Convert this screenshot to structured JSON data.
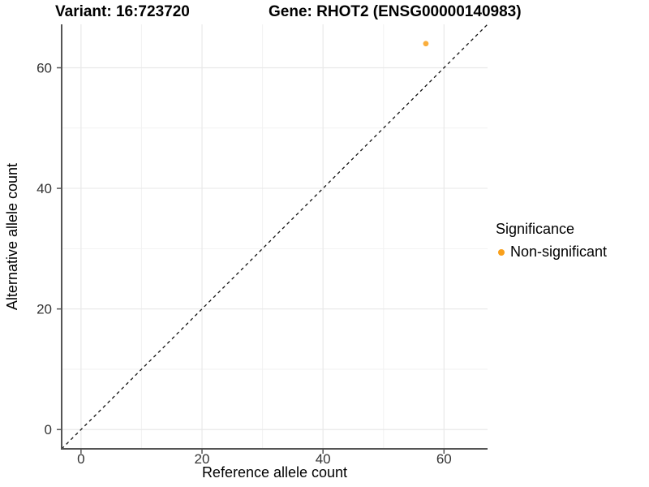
{
  "header": {
    "variant_title": "Variant: 16:723720",
    "gene_title": "Gene: RHOT2 (ENSG00000140983)"
  },
  "legend": {
    "title": "Significance",
    "items": [
      {
        "label": "Non-significant",
        "color": "#F9A01B"
      }
    ]
  },
  "chart_data": {
    "type": "scatter",
    "title": "Variant: 16:723720    Gene: RHOT2 (ENSG00000140983)",
    "xlabel": "Reference allele count",
    "ylabel": "Alternative allele count",
    "xlim": [
      -3.2,
      67.2
    ],
    "ylim": [
      -3.2,
      67.2
    ],
    "xticks": [
      0,
      20,
      40,
      60
    ],
    "yticks": [
      0,
      20,
      40,
      60
    ],
    "xticks_minor": [
      10,
      30,
      50
    ],
    "yticks_minor": [
      10,
      30,
      50
    ],
    "grid": true,
    "legend_position": "right",
    "series": [
      {
        "name": "Non-significant",
        "color": "#F9A01B",
        "points": [
          {
            "x": 57,
            "y": 64
          }
        ]
      }
    ],
    "reference_line": {
      "type": "identity",
      "style": "dashed",
      "color": "#111111"
    }
  },
  "colors": {
    "background": "#ffffff",
    "axis_line": "#555555",
    "tick": "#555555",
    "tick_label": "#333333",
    "grid_major": "#e9e9e9",
    "grid_minor": "#f2f2f2",
    "point": "#F9A01B"
  }
}
